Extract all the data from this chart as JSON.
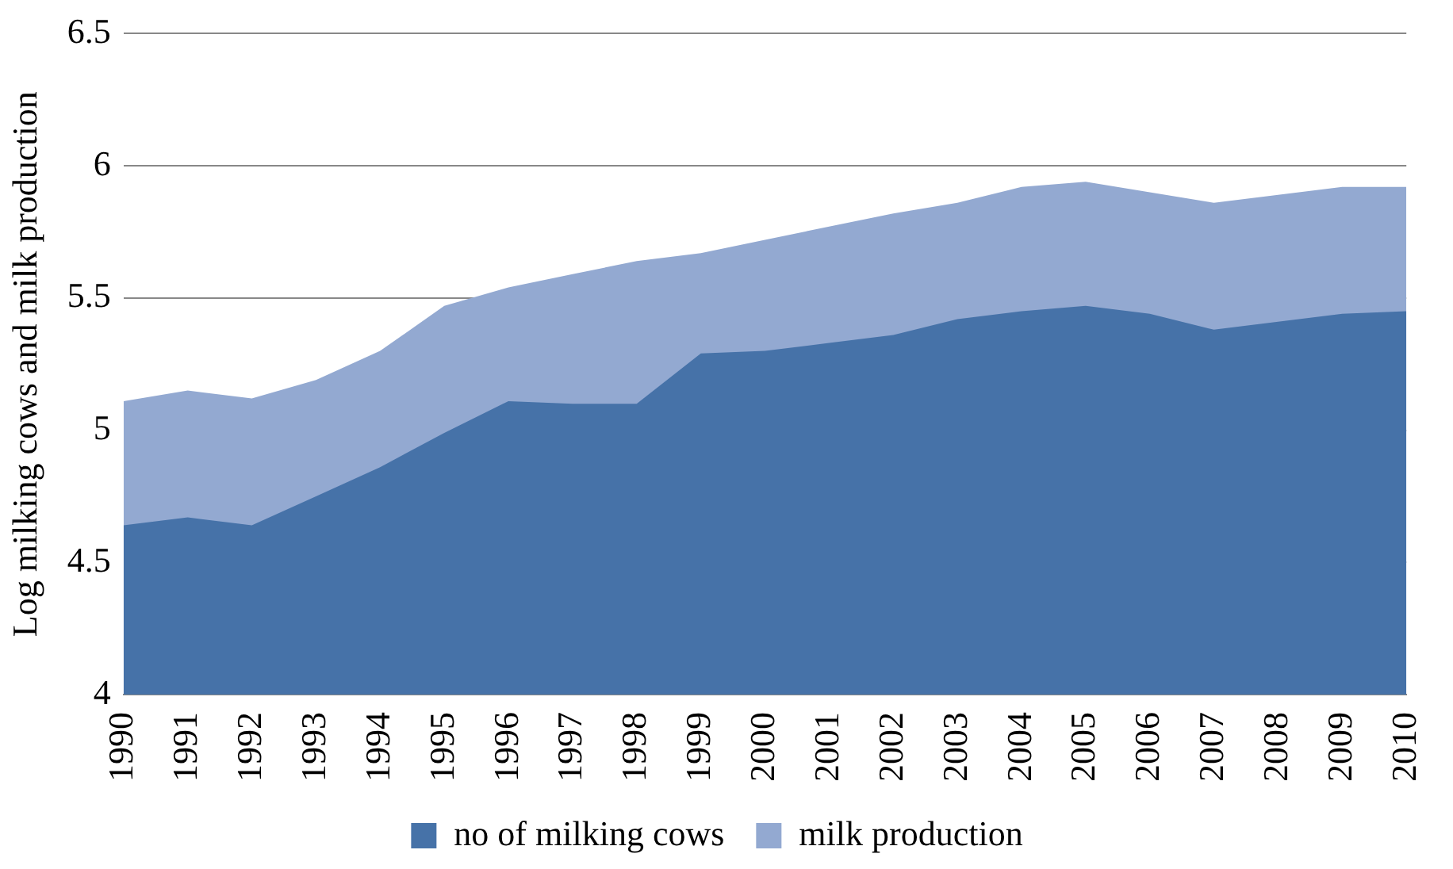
{
  "chart_data": {
    "type": "area",
    "ylabel": "Log milking cows and milk production",
    "categories": [
      "1990",
      "1991",
      "1992",
      "1993",
      "1994",
      "1995",
      "1996",
      "1997",
      "1998",
      "1999",
      "2000",
      "2001",
      "2002",
      "2003",
      "2004",
      "2005",
      "2006",
      "2007",
      "2008",
      "2009",
      "2010"
    ],
    "series": [
      {
        "name": "no of milking cows",
        "color": "#4672a8",
        "values": [
          4.64,
          4.67,
          4.64,
          4.75,
          4.86,
          4.99,
          5.11,
          5.1,
          5.1,
          5.29,
          5.3,
          5.33,
          5.36,
          5.42,
          5.45,
          5.47,
          5.44,
          5.38,
          5.41,
          5.44,
          5.45
        ]
      },
      {
        "name": "milk production",
        "color": "#93a9d1",
        "values": [
          5.11,
          5.15,
          5.12,
          5.19,
          5.3,
          5.47,
          5.54,
          5.59,
          5.64,
          5.67,
          5.72,
          5.77,
          5.82,
          5.86,
          5.92,
          5.94,
          5.9,
          5.86,
          5.89,
          5.92,
          5.92
        ]
      }
    ],
    "ylim": [
      4,
      6.5
    ],
    "yticks": [
      4,
      4.5,
      5,
      5.5,
      6,
      6.5
    ],
    "grid": "y",
    "legend": "bottom"
  }
}
